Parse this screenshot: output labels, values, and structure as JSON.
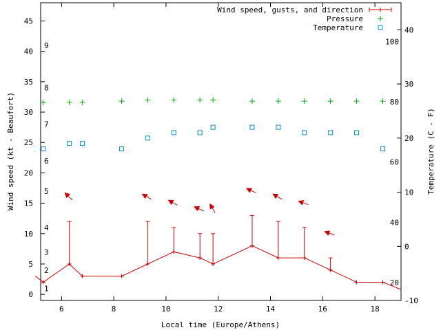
{
  "chart_data": {
    "type": "line",
    "xlabel": "Local time (Europe/Athens)",
    "ylabel_left": "Wind speed (kt - Beaufort)",
    "ylabel_right": "Temperature (C - F)",
    "xlim": [
      5.2,
      19.0
    ],
    "ylim_left": [
      -1,
      48
    ],
    "ylim_right": [
      -10,
      45
    ],
    "x_ticks": [
      6,
      8,
      10,
      12,
      14,
      16,
      18
    ],
    "y_left_ticks": [
      0,
      5,
      10,
      15,
      20,
      25,
      30,
      35,
      40,
      45
    ],
    "y_right_ticks": [
      -10,
      0,
      10,
      20,
      30,
      40
    ],
    "beaufort_labels": [
      {
        "label": "1",
        "kt": 1
      },
      {
        "label": "2",
        "kt": 4
      },
      {
        "label": "3",
        "kt": 7
      },
      {
        "label": "4",
        "kt": 11
      },
      {
        "label": "5",
        "kt": 17
      },
      {
        "label": "6",
        "kt": 22
      },
      {
        "label": "7",
        "kt": 28
      },
      {
        "label": "8",
        "kt": 34
      },
      {
        "label": "9",
        "kt": 41
      }
    ],
    "fahrenheit_labels": [
      {
        "label": "20",
        "temp_c": -6.7
      },
      {
        "label": "40",
        "temp_c": 4.4
      },
      {
        "label": "60",
        "temp_c": 15.6
      },
      {
        "label": "80",
        "temp_c": 26.7
      },
      {
        "label": "100",
        "temp_c": 37.8
      }
    ],
    "legend": {
      "position": "top-right",
      "entries": [
        "Wind speed, gusts, and direction",
        "Pressure",
        "Temperature"
      ]
    },
    "series": [
      {
        "name": "Wind speed, gusts, and direction",
        "color": "#cc0000",
        "points": [
          {
            "x": 5.0,
            "speed": 3,
            "gust": null,
            "dir": null
          },
          {
            "x": 5.3,
            "speed": 2,
            "gust": null,
            "dir": null
          },
          {
            "x": 6.3,
            "speed": 5,
            "gust": 12,
            "dir": null
          },
          {
            "x": 6.8,
            "speed": 3,
            "gust": null,
            "dir": null
          },
          {
            "x": 8.3,
            "speed": 3,
            "gust": null,
            "dir": null
          },
          {
            "x": 9.3,
            "speed": 5,
            "gust": 12,
            "dir": null
          },
          {
            "x": 10.3,
            "speed": 7,
            "gust": 11,
            "dir": null
          },
          {
            "x": 11.3,
            "speed": 6,
            "gust": 10,
            "dir": null
          },
          {
            "x": 11.8,
            "speed": 5,
            "gust": 10,
            "dir": null
          },
          {
            "x": 13.3,
            "speed": 8,
            "gust": 13,
            "dir": null
          },
          {
            "x": 14.3,
            "speed": 6,
            "gust": 12,
            "dir": null
          },
          {
            "x": 15.3,
            "speed": 6,
            "gust": 11,
            "dir": null
          },
          {
            "x": 16.3,
            "speed": 4,
            "gust": 6,
            "dir": null
          },
          {
            "x": 17.3,
            "speed": 2,
            "gust": null,
            "dir": null
          },
          {
            "x": 18.3,
            "speed": 2,
            "gust": null,
            "dir": null
          },
          {
            "x": 19.0,
            "speed": 0.8,
            "gust": null,
            "dir": null
          }
        ],
        "direction_arrows": [
          {
            "x": 6.3,
            "kt": 16,
            "angle_deg": -135
          },
          {
            "x": 9.3,
            "kt": 16,
            "angle_deg": -150
          },
          {
            "x": 10.3,
            "kt": 15,
            "angle_deg": -150
          },
          {
            "x": 11.3,
            "kt": 14,
            "angle_deg": -155
          },
          {
            "x": 11.8,
            "kt": 14,
            "angle_deg": -120
          },
          {
            "x": 13.3,
            "kt": 17,
            "angle_deg": -155
          },
          {
            "x": 14.3,
            "kt": 16,
            "angle_deg": -150
          },
          {
            "x": 15.3,
            "kt": 15,
            "angle_deg": -160
          },
          {
            "x": 16.3,
            "kt": 10,
            "angle_deg": -160
          }
        ]
      },
      {
        "name": "Pressure",
        "color": "#00aa00",
        "marker": "plus",
        "x": [
          5.3,
          6.3,
          6.8,
          8.3,
          9.3,
          10.3,
          11.3,
          11.8,
          13.3,
          14.3,
          15.3,
          16.3,
          17.3,
          18.3
        ],
        "y_kt_scale": [
          31.6,
          31.6,
          31.6,
          31.8,
          32.0,
          32.0,
          32.0,
          32.0,
          31.8,
          31.8,
          31.8,
          31.8,
          31.8,
          31.8
        ]
      },
      {
        "name": "Temperature",
        "color": "#0088cc",
        "marker": "square",
        "x": [
          5.3,
          6.3,
          6.8,
          8.3,
          9.3,
          10.3,
          11.3,
          11.8,
          13.3,
          14.3,
          15.3,
          16.3,
          17.3,
          18.3
        ],
        "temp_c": [
          18,
          19,
          19,
          18,
          20,
          21,
          21,
          22,
          22,
          22,
          21,
          21,
          21,
          18
        ]
      }
    ]
  }
}
